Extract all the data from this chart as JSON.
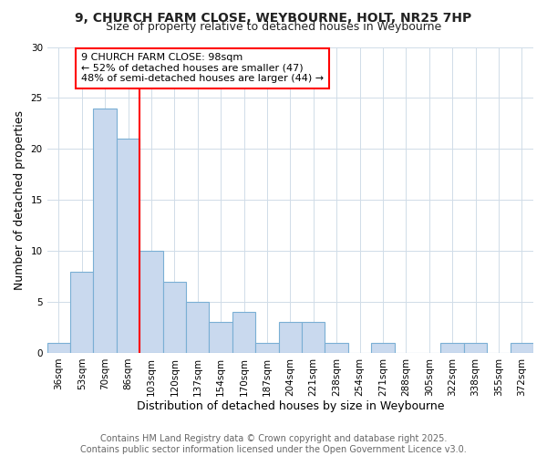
{
  "title": "9, CHURCH FARM CLOSE, WEYBOURNE, HOLT, NR25 7HP",
  "subtitle": "Size of property relative to detached houses in Weybourne",
  "xlabel": "Distribution of detached houses by size in Weybourne",
  "ylabel": "Number of detached properties",
  "bin_labels": [
    "36sqm",
    "53sqm",
    "70sqm",
    "86sqm",
    "103sqm",
    "120sqm",
    "137sqm",
    "154sqm",
    "170sqm",
    "187sqm",
    "204sqm",
    "221sqm",
    "238sqm",
    "254sqm",
    "271sqm",
    "288sqm",
    "305sqm",
    "322sqm",
    "338sqm",
    "355sqm",
    "372sqm"
  ],
  "bar_values": [
    1,
    8,
    24,
    21,
    10,
    7,
    5,
    3,
    4,
    1,
    3,
    3,
    1,
    0,
    1,
    0,
    0,
    1,
    1,
    0,
    1
  ],
  "bar_color": "#c9d9ee",
  "bar_edgecolor": "#7aafd4",
  "vline_x": 4.0,
  "vline_color": "red",
  "annotation_text": "9 CHURCH FARM CLOSE: 98sqm\n← 52% of detached houses are smaller (47)\n48% of semi-detached houses are larger (44) →",
  "annotation_box_color": "white",
  "annotation_box_edgecolor": "red",
  "ylim": [
    0,
    30
  ],
  "yticks": [
    0,
    5,
    10,
    15,
    20,
    25,
    30
  ],
  "footer_line1": "Contains HM Land Registry data © Crown copyright and database right 2025.",
  "footer_line2": "Contains public sector information licensed under the Open Government Licence v3.0.",
  "bg_color": "#ffffff",
  "plot_bg_color": "#ffffff",
  "title_fontsize": 10,
  "subtitle_fontsize": 9,
  "axis_label_fontsize": 9,
  "tick_fontsize": 7.5,
  "annotation_fontsize": 8,
  "footer_fontsize": 7
}
